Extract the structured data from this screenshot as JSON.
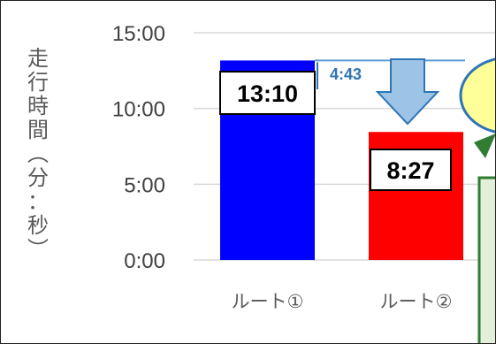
{
  "chart_data": {
    "type": "bar",
    "ylabel_chars": [
      "走",
      "行",
      "時",
      "間",
      "︵",
      "分",
      "：",
      "秒",
      "︶"
    ],
    "y_ticks": [
      "0:00",
      "5:00",
      "10:00",
      "15:00"
    ],
    "ylim_minutes": [
      0,
      15
    ],
    "categories": [
      "ルート①",
      "ルート②"
    ],
    "values_minutes": [
      13.1667,
      8.45
    ],
    "data_labels": [
      "13:10",
      "8:27"
    ],
    "bar_colors": [
      "#0000ff",
      "#ff0000"
    ],
    "difference_label": "4:43",
    "difference_color": "#2e75b6",
    "arrow_color": "#9dc3e6",
    "grid": true,
    "callout_color": "#ffff99",
    "callout_border": "#2e75b6",
    "note_fill": "#e2f0d9",
    "note_border": "#2e7d32"
  }
}
